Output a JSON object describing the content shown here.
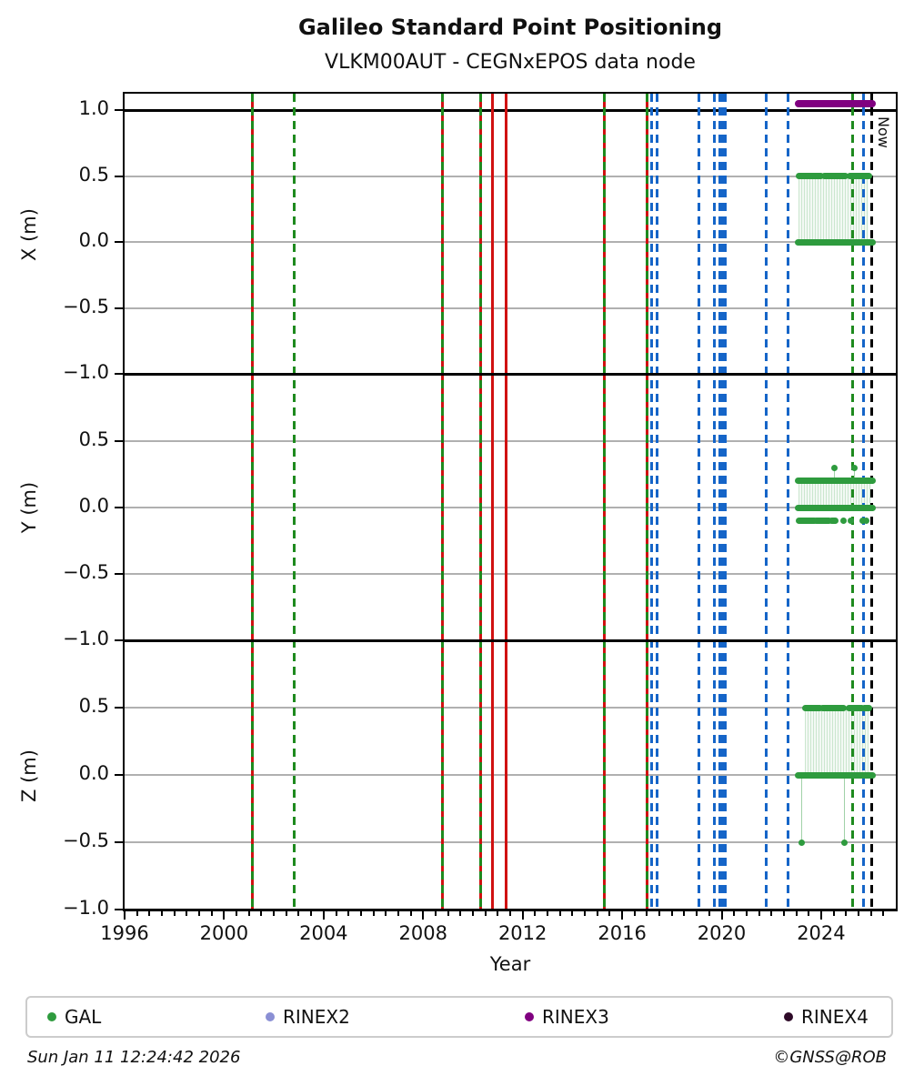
{
  "header": {
    "title": "Galileo Standard Point Positioning",
    "subtitle": "VLKM00AUT - CEGNxEPOS data node"
  },
  "footer": {
    "timestamp": "Sun Jan 11 12:24:42 2026",
    "credit": "©GNSS@ROB"
  },
  "legend": {
    "items": [
      {
        "label": "GAL",
        "color": "#2e9b3e",
        "marker": "dot"
      },
      {
        "label": "RINEX2",
        "color": "#8a8fd4",
        "marker": "dot"
      },
      {
        "label": "RINEX3",
        "color": "#800080",
        "marker": "dot"
      },
      {
        "label": "RINEX4",
        "color": "#2e0a28",
        "marker": "dot"
      }
    ]
  },
  "chart_data": {
    "type": "line",
    "title": "Galileo Standard Point Positioning",
    "subtitle": "VLKM00AUT - CEGNxEPOS data node",
    "xlabel": "Year",
    "grid": true,
    "x_axis": {
      "min": 1996,
      "max": 2027,
      "major_ticks": [
        1996,
        2000,
        2004,
        2008,
        2012,
        2016,
        2020,
        2024
      ],
      "minor_step": 0.5
    },
    "colors": {
      "red_event": "#d01111",
      "green_event": "#1e8a1e",
      "blue_event": "#1565c8",
      "black_event": "#000000",
      "data_green": "#2e9b3e",
      "rinex3_purple": "#800080",
      "grid_gray": "#b0b0b0"
    },
    "panels": [
      {
        "name": "X",
        "ylabel": "X (m)",
        "ylim": [
          -1.05,
          1.12
        ],
        "yticks": [
          1.0,
          0.5,
          0.0,
          -0.5
        ],
        "bottom_tick": -1.0,
        "segments": [
          {
            "series": "RINEX3",
            "y": 1.05,
            "x": [
              2023.05,
              2026.08
            ],
            "color": "#800080",
            "lw": 8
          },
          {
            "series": "GAL",
            "y": 0.5,
            "x": [
              2023.09,
              2024.0
            ]
          },
          {
            "series": "GAL",
            "y": 0.5,
            "x": [
              2024.1,
              2024.98
            ]
          },
          {
            "series": "GAL",
            "y": 0.5,
            "x": [
              2025.13,
              2025.94
            ]
          },
          {
            "series": "GAL",
            "y": 0.0,
            "x": [
              2023.05,
              2026.08
            ]
          }
        ],
        "points": [],
        "bands": [
          {
            "x": [
              2023.1,
              2025.92
            ],
            "y": [
              0.0,
              0.5
            ]
          }
        ],
        "drops": []
      },
      {
        "name": "Y",
        "ylabel": "Y (m)",
        "ylim": [
          -1.0,
          1.0
        ],
        "yticks": [
          0.5,
          0.0,
          -0.5
        ],
        "bottom_tick": -1.0,
        "segments": [
          {
            "series": "GAL",
            "y": 0.2,
            "x": [
              2023.05,
              2026.08
            ]
          },
          {
            "series": "GAL",
            "y": 0.0,
            "x": [
              2023.05,
              2026.08
            ]
          },
          {
            "series": "GAL",
            "y": -0.1,
            "x": [
              2023.09,
              2023.75
            ]
          },
          {
            "series": "GAL",
            "y": -0.1,
            "x": [
              2023.8,
              2024.35
            ]
          },
          {
            "series": "GAL",
            "y": -0.1,
            "x": [
              2024.4,
              2024.6
            ]
          }
        ],
        "points": [
          {
            "x": 2024.55,
            "y": 0.3
          },
          {
            "x": 2025.32,
            "y": 0.3
          },
          {
            "x": 2024.88,
            "y": -0.1
          },
          {
            "x": 2025.2,
            "y": -0.1
          },
          {
            "x": 2025.65,
            "y": -0.1
          },
          {
            "x": 2025.83,
            "y": -0.1
          }
        ],
        "bands": [
          {
            "x": [
              2023.1,
              2026.0
            ],
            "y": [
              0.0,
              0.2
            ]
          }
        ],
        "drops": [
          {
            "x": 2024.55,
            "y": [
              0.2,
              0.3
            ]
          },
          {
            "x": 2025.32,
            "y": [
              0.2,
              0.3
            ]
          }
        ]
      },
      {
        "name": "Z",
        "ylabel": "Z (m)",
        "ylim": [
          -1.0,
          1.0
        ],
        "yticks": [
          0.5,
          0.0,
          -0.5
        ],
        "bottom_tick": -1.0,
        "segments": [
          {
            "series": "GAL",
            "y": 0.5,
            "x": [
              2023.34,
              2023.96
            ]
          },
          {
            "series": "GAL",
            "y": 0.5,
            "x": [
              2024.04,
              2024.92
            ]
          },
          {
            "series": "GAL",
            "y": 0.5,
            "x": [
              2025.1,
              2025.65
            ]
          },
          {
            "series": "GAL",
            "y": 0.5,
            "x": [
              2025.72,
              2025.94
            ]
          },
          {
            "series": "GAL",
            "y": 0.0,
            "x": [
              2023.05,
              2026.08
            ]
          }
        ],
        "points": [
          {
            "x": 2023.23,
            "y": -0.5
          },
          {
            "x": 2024.95,
            "y": -0.5
          }
        ],
        "bands": [
          {
            "x": [
              2023.35,
              2025.92
            ],
            "y": [
              0.0,
              0.5
            ]
          }
        ],
        "drops": [
          {
            "x": 2023.23,
            "y": [
              -0.5,
              0.0
            ]
          },
          {
            "x": 2024.95,
            "y": [
              -0.5,
              0.0
            ]
          }
        ]
      }
    ],
    "events": [
      {
        "year": 2001.15,
        "color": "red",
        "style": "solid"
      },
      {
        "year": 2001.15,
        "color": "green",
        "style": "dashed"
      },
      {
        "year": 2002.8,
        "color": "green",
        "style": "dashed"
      },
      {
        "year": 2008.79,
        "color": "red",
        "style": "solid"
      },
      {
        "year": 2008.79,
        "color": "green",
        "style": "dashed"
      },
      {
        "year": 2010.33,
        "color": "red",
        "style": "solid"
      },
      {
        "year": 2010.33,
        "color": "green",
        "style": "dashed"
      },
      {
        "year": 2010.77,
        "color": "red",
        "style": "solid"
      },
      {
        "year": 2011.35,
        "color": "red",
        "style": "solid"
      },
      {
        "year": 2015.3,
        "color": "red",
        "style": "solid"
      },
      {
        "year": 2015.3,
        "color": "green",
        "style": "dashed"
      },
      {
        "year": 2017.02,
        "color": "red",
        "style": "solid"
      },
      {
        "year": 2017.02,
        "color": "green",
        "style": "dashed"
      },
      {
        "year": 2017.2,
        "color": "blue",
        "style": "dashed"
      },
      {
        "year": 2017.42,
        "color": "blue",
        "style": "dashed"
      },
      {
        "year": 2019.07,
        "color": "blue",
        "style": "dashed"
      },
      {
        "year": 2019.72,
        "color": "blue",
        "style": "dashed"
      },
      {
        "year": 2019.91,
        "color": "blue",
        "style": "dashed"
      },
      {
        "year": 2020.02,
        "color": "blue",
        "style": "dashed"
      },
      {
        "year": 2020.13,
        "color": "blue",
        "style": "dashed"
      },
      {
        "year": 2021.8,
        "color": "blue",
        "style": "dashed"
      },
      {
        "year": 2022.65,
        "color": "blue",
        "style": "dashed"
      },
      {
        "year": 2025.28,
        "color": "green",
        "style": "dashed"
      },
      {
        "year": 2025.72,
        "color": "blue",
        "style": "dashed"
      }
    ],
    "now": {
      "year": 2026.03,
      "label": "Now",
      "color": "black",
      "style": "dashed"
    }
  }
}
